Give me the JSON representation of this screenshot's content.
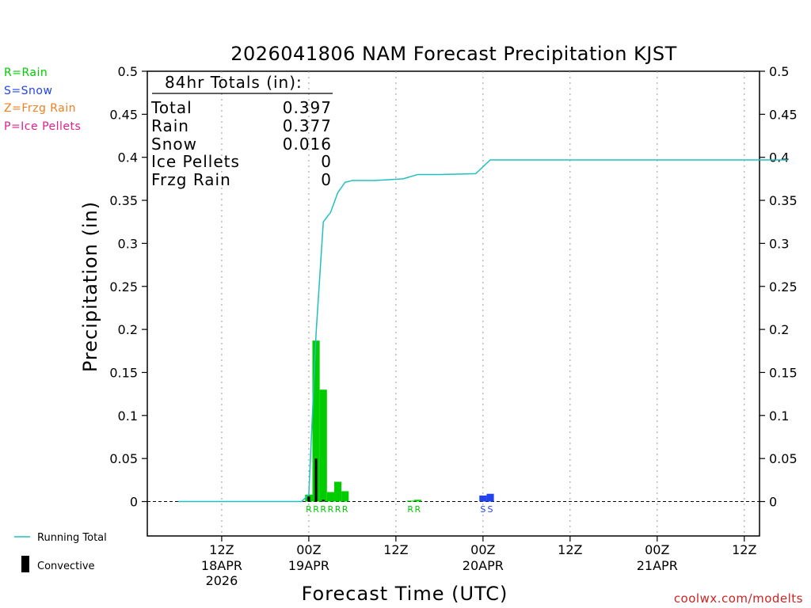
{
  "chart_data": {
    "type": "bar",
    "title": "2026041806 NAM Forecast Precipitation KJST",
    "xlabel": "Forecast Time (UTC)",
    "ylabel": "Precipitation (in)",
    "ylim": [
      -0.04,
      0.5
    ],
    "yticks": [
      0,
      0.05,
      0.1,
      0.15,
      0.2,
      0.25,
      0.3,
      0.35,
      0.4,
      0.45,
      0.5
    ],
    "ytick_labels": [
      "0",
      "0.05",
      "0.1",
      "0.15",
      "0.2",
      "0.25",
      "0.3",
      "0.35",
      "0.4",
      "0.45",
      "0.5"
    ],
    "x_range_hours": [
      0,
      84
    ],
    "x_ticks": [
      {
        "hour": 6,
        "line1": "12Z",
        "line2": "18APR",
        "line3": "2026"
      },
      {
        "hour": 18,
        "line1": "00Z",
        "line2": "19APR",
        "line3": ""
      },
      {
        "hour": 30,
        "line1": "12Z",
        "line2": "",
        "line3": ""
      },
      {
        "hour": 42,
        "line1": "00Z",
        "line2": "20APR",
        "line3": ""
      },
      {
        "hour": 54,
        "line1": "12Z",
        "line2": "",
        "line3": ""
      },
      {
        "hour": 66,
        "line1": "00Z",
        "line2": "21APR",
        "line3": ""
      },
      {
        "hour": 78,
        "line1": "12Z",
        "line2": "",
        "line3": ""
      }
    ],
    "series": [
      {
        "name": "Rain",
        "color": "#00cc00",
        "bars": [
          {
            "hour": 18,
            "value": 0.008
          },
          {
            "hour": 19,
            "value": 0.187
          },
          {
            "hour": 20,
            "value": 0.13
          },
          {
            "hour": 21,
            "value": 0.011
          },
          {
            "hour": 22,
            "value": 0.023
          },
          {
            "hour": 23,
            "value": 0.012
          },
          {
            "hour": 32,
            "value": 0.001
          },
          {
            "hour": 33,
            "value": 0.002
          }
        ]
      },
      {
        "name": "Snow",
        "color": "#2244ee",
        "bars": [
          {
            "hour": 42,
            "value": 0.007
          },
          {
            "hour": 43,
            "value": 0.009
          }
        ]
      },
      {
        "name": "Convective",
        "color": "#000000",
        "bars": [
          {
            "hour": 18,
            "value": 0.006
          },
          {
            "hour": 19,
            "value": 0.05
          },
          {
            "hour": 20,
            "value": 0.002
          }
        ]
      }
    ],
    "running_total": {
      "name": "Running Total",
      "color": "#20c0c0",
      "points": [
        [
          0,
          0
        ],
        [
          17,
          0
        ],
        [
          18,
          0.008
        ],
        [
          19,
          0.195
        ],
        [
          20,
          0.325
        ],
        [
          21,
          0.336
        ],
        [
          22,
          0.359
        ],
        [
          23,
          0.371
        ],
        [
          24,
          0.373
        ],
        [
          27,
          0.373
        ],
        [
          29,
          0.374
        ],
        [
          31,
          0.375
        ],
        [
          33,
          0.38
        ],
        [
          36,
          0.38
        ],
        [
          41,
          0.381
        ],
        [
          43,
          0.397
        ],
        [
          84,
          0.397
        ]
      ]
    },
    "ptype_markers": [
      {
        "hour": 18,
        "label": "R",
        "color": "#00cc00"
      },
      {
        "hour": 19,
        "label": "R",
        "color": "#00cc00"
      },
      {
        "hour": 20,
        "label": "R",
        "color": "#00cc00"
      },
      {
        "hour": 21,
        "label": "R",
        "color": "#00cc00"
      },
      {
        "hour": 22,
        "label": "R",
        "color": "#00cc00"
      },
      {
        "hour": 23,
        "label": "R",
        "color": "#00cc00"
      },
      {
        "hour": 32,
        "label": "R",
        "color": "#00cc00"
      },
      {
        "hour": 33,
        "label": "R",
        "color": "#00cc00"
      },
      {
        "hour": 42,
        "label": "S",
        "color": "#2244ee"
      },
      {
        "hour": 43,
        "label": "S",
        "color": "#2244ee"
      }
    ]
  },
  "totals_box": {
    "heading": "84hr Totals (in):",
    "rows": [
      {
        "label": "Total",
        "value": "0.397"
      },
      {
        "label": "Rain",
        "value": "0.377"
      },
      {
        "label": "Snow",
        "value": "0.016"
      },
      {
        "label": "Ice Pellets",
        "value": "0"
      },
      {
        "label": "Frzg Rain",
        "value": "0"
      }
    ]
  },
  "ptype_legend": [
    {
      "text": "R=Rain",
      "color": "#00cc00"
    },
    {
      "text": "S=Snow",
      "color": "#2244ee"
    },
    {
      "text": "Z=Frzg Rain",
      "color": "#f08020"
    },
    {
      "text": "P=Ice Pellets",
      "color": "#e0208c"
    }
  ],
  "bottom_legend": {
    "running_total": "Running Total",
    "convective": "Convective"
  },
  "credit": "coolwx.com/modelts"
}
